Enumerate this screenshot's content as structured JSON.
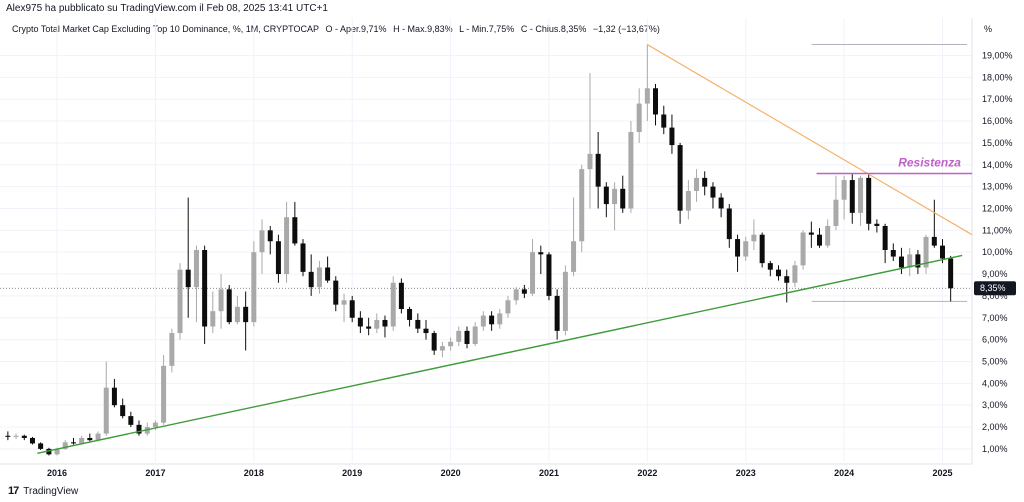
{
  "header": {
    "published_by": "Alex975 ha pubblicato su TradingView.com il Feb 08, 2025 13:41 UTC+1"
  },
  "symbol": {
    "name": "Crypto Total Market Cap Excluding Top 10 Dominance, %, 1M, CRYPTOCAP",
    "open": "O - Aper.9,71%",
    "high": "H - Max.9,83%",
    "low": "L - Min.7,75%",
    "close": "C - Chius.8,35%",
    "change": "−1,32 (−13,67%)"
  },
  "footer": {
    "brand": "TradingView"
  },
  "axis": {
    "unit": "%",
    "current_price_label": "8,35%"
  },
  "annotation": {
    "resistance_label": "Resistenza"
  },
  "colors": {
    "up": "#a9a9a9",
    "down": "#0d0d0d",
    "resistance": "#c060c8",
    "trend_orange": "#f5b26b",
    "trend_green": "#3f9b3a",
    "grid": "#f0f3fa"
  },
  "chart_data": {
    "type": "candlestick",
    "timeframe": "1M",
    "y_axis": {
      "unit": "%",
      "range": [
        0.4,
        19.8
      ],
      "tick_labels": [
        "1,00%",
        "2,00%",
        "3,00%",
        "4,00%",
        "5,00%",
        "6,00%",
        "7,00%",
        "8,00%",
        "9,00%",
        "10,00%",
        "11,00%",
        "12,00%",
        "13,00%",
        "14,00%",
        "15,00%",
        "16,00%",
        "17,00%",
        "18,00%",
        "19,00%"
      ],
      "tick_values": [
        1,
        2,
        3,
        4,
        5,
        6,
        7,
        8,
        9,
        10,
        11,
        12,
        13,
        14,
        15,
        16,
        17,
        18,
        19
      ]
    },
    "x_axis": {
      "tick_labels": [
        "2016",
        "2017",
        "2018",
        "2019",
        "2020",
        "2021",
        "2022",
        "2023",
        "2024",
        "2025"
      ],
      "tick_values": [
        2016,
        2017,
        2018,
        2019,
        2020,
        2021,
        2022,
        2023,
        2024,
        2025
      ],
      "range": [
        2015.42,
        2025.3
      ]
    },
    "grid": true,
    "last_close": 8.35,
    "candles": [
      {
        "t": 2015.5,
        "o": 1.6,
        "h": 1.8,
        "l": 1.4,
        "c": 1.55
      },
      {
        "t": 2015.583,
        "o": 1.55,
        "h": 1.7,
        "l": 1.45,
        "c": 1.6
      },
      {
        "t": 2015.667,
        "o": 1.6,
        "h": 1.65,
        "l": 1.4,
        "c": 1.5
      },
      {
        "t": 2015.75,
        "o": 1.5,
        "h": 1.55,
        "l": 1.2,
        "c": 1.25
      },
      {
        "t": 2015.833,
        "o": 1.25,
        "h": 1.3,
        "l": 0.95,
        "c": 1.0
      },
      {
        "t": 2015.917,
        "o": 1.0,
        "h": 1.05,
        "l": 0.7,
        "c": 0.75
      },
      {
        "t": 2016.0,
        "o": 0.75,
        "h": 1.05,
        "l": 0.7,
        "c": 1.0
      },
      {
        "t": 2016.083,
        "o": 1.0,
        "h": 1.4,
        "l": 0.95,
        "c": 1.3
      },
      {
        "t": 2016.167,
        "o": 1.3,
        "h": 1.5,
        "l": 1.2,
        "c": 1.25
      },
      {
        "t": 2016.25,
        "o": 1.25,
        "h": 1.6,
        "l": 1.2,
        "c": 1.5
      },
      {
        "t": 2016.333,
        "o": 1.5,
        "h": 1.7,
        "l": 1.35,
        "c": 1.4
      },
      {
        "t": 2016.417,
        "o": 1.4,
        "h": 1.8,
        "l": 1.35,
        "c": 1.7
      },
      {
        "t": 2016.5,
        "o": 1.7,
        "h": 5.0,
        "l": 1.6,
        "c": 3.8
      },
      {
        "t": 2016.583,
        "o": 3.8,
        "h": 4.2,
        "l": 2.9,
        "c": 3.0
      },
      {
        "t": 2016.667,
        "o": 3.0,
        "h": 3.3,
        "l": 2.4,
        "c": 2.5
      },
      {
        "t": 2016.75,
        "o": 2.5,
        "h": 2.7,
        "l": 2.0,
        "c": 2.1
      },
      {
        "t": 2016.833,
        "o": 2.1,
        "h": 2.3,
        "l": 1.6,
        "c": 1.7
      },
      {
        "t": 2016.917,
        "o": 1.7,
        "h": 2.2,
        "l": 1.6,
        "c": 2.0
      },
      {
        "t": 2017.0,
        "o": 2.0,
        "h": 2.3,
        "l": 1.85,
        "c": 2.2
      },
      {
        "t": 2017.083,
        "o": 2.2,
        "h": 5.3,
        "l": 2.1,
        "c": 4.8
      },
      {
        "t": 2017.167,
        "o": 4.8,
        "h": 6.5,
        "l": 4.5,
        "c": 6.3
      },
      {
        "t": 2017.25,
        "o": 6.3,
        "h": 9.5,
        "l": 6.0,
        "c": 9.2
      },
      {
        "t": 2017.333,
        "o": 9.2,
        "h": 12.5,
        "l": 7.0,
        "c": 8.4
      },
      {
        "t": 2017.417,
        "o": 8.4,
        "h": 10.3,
        "l": 6.8,
        "c": 10.1
      },
      {
        "t": 2017.5,
        "o": 10.1,
        "h": 10.3,
        "l": 5.8,
        "c": 6.6
      },
      {
        "t": 2017.583,
        "o": 6.6,
        "h": 8.2,
        "l": 6.3,
        "c": 7.3
      },
      {
        "t": 2017.667,
        "o": 7.3,
        "h": 9.0,
        "l": 6.5,
        "c": 8.3
      },
      {
        "t": 2017.75,
        "o": 8.3,
        "h": 8.5,
        "l": 6.7,
        "c": 6.8
      },
      {
        "t": 2017.833,
        "o": 6.8,
        "h": 8.0,
        "l": 6.7,
        "c": 7.5
      },
      {
        "t": 2017.917,
        "o": 7.5,
        "h": 8.2,
        "l": 5.5,
        "c": 6.8
      },
      {
        "t": 2018.0,
        "o": 6.8,
        "h": 10.5,
        "l": 6.6,
        "c": 10.0
      },
      {
        "t": 2018.083,
        "o": 10.0,
        "h": 11.5,
        "l": 9.0,
        "c": 11.0
      },
      {
        "t": 2018.167,
        "o": 11.0,
        "h": 11.2,
        "l": 9.9,
        "c": 10.5
      },
      {
        "t": 2018.25,
        "o": 10.5,
        "h": 10.8,
        "l": 8.6,
        "c": 9.0
      },
      {
        "t": 2018.333,
        "o": 9.0,
        "h": 12.3,
        "l": 8.6,
        "c": 11.6
      },
      {
        "t": 2018.417,
        "o": 11.6,
        "h": 12.3,
        "l": 10.3,
        "c": 10.4
      },
      {
        "t": 2018.5,
        "o": 10.4,
        "h": 10.6,
        "l": 8.9,
        "c": 9.1
      },
      {
        "t": 2018.583,
        "o": 9.1,
        "h": 9.9,
        "l": 8.0,
        "c": 8.4
      },
      {
        "t": 2018.667,
        "o": 8.4,
        "h": 9.6,
        "l": 8.1,
        "c": 9.3
      },
      {
        "t": 2018.75,
        "o": 9.3,
        "h": 9.8,
        "l": 8.6,
        "c": 8.7
      },
      {
        "t": 2018.833,
        "o": 8.7,
        "h": 8.9,
        "l": 7.3,
        "c": 7.6
      },
      {
        "t": 2018.917,
        "o": 7.6,
        "h": 8.1,
        "l": 6.8,
        "c": 7.8
      },
      {
        "t": 2019.0,
        "o": 7.8,
        "h": 8.0,
        "l": 6.8,
        "c": 7.0
      },
      {
        "t": 2019.083,
        "o": 7.0,
        "h": 7.3,
        "l": 6.3,
        "c": 6.6
      },
      {
        "t": 2019.167,
        "o": 6.6,
        "h": 7.0,
        "l": 6.2,
        "c": 6.5
      },
      {
        "t": 2019.25,
        "o": 6.5,
        "h": 7.2,
        "l": 6.3,
        "c": 6.9
      },
      {
        "t": 2019.333,
        "o": 6.9,
        "h": 7.1,
        "l": 6.1,
        "c": 6.6
      },
      {
        "t": 2019.417,
        "o": 6.6,
        "h": 8.9,
        "l": 6.4,
        "c": 8.6
      },
      {
        "t": 2019.5,
        "o": 8.6,
        "h": 8.8,
        "l": 7.2,
        "c": 7.4
      },
      {
        "t": 2019.583,
        "o": 7.4,
        "h": 7.5,
        "l": 6.6,
        "c": 6.9
      },
      {
        "t": 2019.667,
        "o": 6.9,
        "h": 7.2,
        "l": 6.3,
        "c": 6.5
      },
      {
        "t": 2019.75,
        "o": 6.5,
        "h": 6.9,
        "l": 6.0,
        "c": 6.3
      },
      {
        "t": 2019.833,
        "o": 6.3,
        "h": 6.4,
        "l": 5.3,
        "c": 5.5
      },
      {
        "t": 2019.917,
        "o": 5.5,
        "h": 5.9,
        "l": 5.2,
        "c": 5.7
      },
      {
        "t": 2020.0,
        "o": 5.7,
        "h": 6.1,
        "l": 5.5,
        "c": 5.9
      },
      {
        "t": 2020.083,
        "o": 5.9,
        "h": 6.6,
        "l": 5.7,
        "c": 6.4
      },
      {
        "t": 2020.167,
        "o": 6.4,
        "h": 6.6,
        "l": 5.6,
        "c": 5.8
      },
      {
        "t": 2020.25,
        "o": 5.8,
        "h": 6.8,
        "l": 5.7,
        "c": 6.6
      },
      {
        "t": 2020.333,
        "o": 6.6,
        "h": 7.3,
        "l": 6.4,
        "c": 7.1
      },
      {
        "t": 2020.417,
        "o": 7.1,
        "h": 7.3,
        "l": 6.4,
        "c": 6.7
      },
      {
        "t": 2020.5,
        "o": 6.7,
        "h": 7.4,
        "l": 6.5,
        "c": 7.2
      },
      {
        "t": 2020.583,
        "o": 7.2,
        "h": 8.0,
        "l": 7.0,
        "c": 7.8
      },
      {
        "t": 2020.667,
        "o": 7.8,
        "h": 8.4,
        "l": 7.6,
        "c": 8.3
      },
      {
        "t": 2020.75,
        "o": 8.3,
        "h": 8.5,
        "l": 7.9,
        "c": 8.1
      },
      {
        "t": 2020.833,
        "o": 8.1,
        "h": 10.6,
        "l": 8.0,
        "c": 10.0
      },
      {
        "t": 2020.917,
        "o": 10.0,
        "h": 10.3,
        "l": 9.0,
        "c": 9.9
      },
      {
        "t": 2021.0,
        "o": 9.9,
        "h": 10.0,
        "l": 7.8,
        "c": 8.0
      },
      {
        "t": 2021.083,
        "o": 8.0,
        "h": 8.3,
        "l": 6.0,
        "c": 6.4
      },
      {
        "t": 2021.167,
        "o": 6.4,
        "h": 9.4,
        "l": 6.2,
        "c": 9.1
      },
      {
        "t": 2021.25,
        "o": 9.1,
        "h": 12.5,
        "l": 8.9,
        "c": 10.5
      },
      {
        "t": 2021.333,
        "o": 10.5,
        "h": 14.0,
        "l": 10.0,
        "c": 13.8
      },
      {
        "t": 2021.417,
        "o": 13.8,
        "h": 18.2,
        "l": 12.0,
        "c": 14.5
      },
      {
        "t": 2021.5,
        "o": 14.5,
        "h": 15.5,
        "l": 12.0,
        "c": 13.0
      },
      {
        "t": 2021.583,
        "o": 13.0,
        "h": 13.2,
        "l": 11.6,
        "c": 12.2
      },
      {
        "t": 2021.667,
        "o": 12.2,
        "h": 13.2,
        "l": 11.0,
        "c": 12.9
      },
      {
        "t": 2021.75,
        "o": 12.9,
        "h": 13.5,
        "l": 11.8,
        "c": 12.0
      },
      {
        "t": 2021.833,
        "o": 12.0,
        "h": 16.0,
        "l": 11.8,
        "c": 15.5
      },
      {
        "t": 2021.917,
        "o": 15.5,
        "h": 17.5,
        "l": 15.0,
        "c": 16.8
      },
      {
        "t": 2022.0,
        "o": 16.8,
        "h": 19.5,
        "l": 16.0,
        "c": 17.5
      },
      {
        "t": 2022.083,
        "o": 17.5,
        "h": 17.7,
        "l": 15.8,
        "c": 16.3
      },
      {
        "t": 2022.167,
        "o": 16.3,
        "h": 16.7,
        "l": 15.4,
        "c": 15.7
      },
      {
        "t": 2022.25,
        "o": 15.7,
        "h": 16.3,
        "l": 14.5,
        "c": 14.9
      },
      {
        "t": 2022.333,
        "o": 14.9,
        "h": 15.0,
        "l": 11.3,
        "c": 11.9
      },
      {
        "t": 2022.417,
        "o": 11.9,
        "h": 13.3,
        "l": 11.5,
        "c": 12.8
      },
      {
        "t": 2022.5,
        "o": 12.8,
        "h": 13.8,
        "l": 12.3,
        "c": 13.4
      },
      {
        "t": 2022.583,
        "o": 13.4,
        "h": 13.7,
        "l": 12.6,
        "c": 13.0
      },
      {
        "t": 2022.667,
        "o": 13.0,
        "h": 13.2,
        "l": 12.0,
        "c": 12.5
      },
      {
        "t": 2022.75,
        "o": 12.5,
        "h": 12.7,
        "l": 11.6,
        "c": 12.0
      },
      {
        "t": 2022.833,
        "o": 12.0,
        "h": 12.2,
        "l": 10.2,
        "c": 10.6
      },
      {
        "t": 2022.917,
        "o": 10.6,
        "h": 10.8,
        "l": 9.1,
        "c": 9.8
      },
      {
        "t": 2023.0,
        "o": 9.8,
        "h": 10.7,
        "l": 9.6,
        "c": 10.5
      },
      {
        "t": 2023.083,
        "o": 10.5,
        "h": 11.5,
        "l": 10.1,
        "c": 10.8
      },
      {
        "t": 2023.167,
        "o": 10.8,
        "h": 10.9,
        "l": 9.3,
        "c": 9.5
      },
      {
        "t": 2023.25,
        "o": 9.5,
        "h": 9.6,
        "l": 8.9,
        "c": 9.2
      },
      {
        "t": 2023.333,
        "o": 9.2,
        "h": 9.4,
        "l": 8.7,
        "c": 8.9
      },
      {
        "t": 2023.417,
        "o": 8.9,
        "h": 9.2,
        "l": 7.7,
        "c": 8.6
      },
      {
        "t": 2023.5,
        "o": 8.6,
        "h": 9.6,
        "l": 8.4,
        "c": 9.4
      },
      {
        "t": 2023.583,
        "o": 9.4,
        "h": 11.0,
        "l": 9.2,
        "c": 10.9
      },
      {
        "t": 2023.667,
        "o": 10.9,
        "h": 11.4,
        "l": 10.2,
        "c": 10.8
      },
      {
        "t": 2023.75,
        "o": 10.8,
        "h": 11.1,
        "l": 10.2,
        "c": 10.3
      },
      {
        "t": 2023.833,
        "o": 10.3,
        "h": 11.5,
        "l": 10.2,
        "c": 11.2
      },
      {
        "t": 2023.917,
        "o": 11.2,
        "h": 13.5,
        "l": 11.0,
        "c": 12.4
      },
      {
        "t": 2024.0,
        "o": 12.4,
        "h": 13.5,
        "l": 11.5,
        "c": 13.3
      },
      {
        "t": 2024.083,
        "o": 13.3,
        "h": 13.6,
        "l": 11.3,
        "c": 11.8
      },
      {
        "t": 2024.167,
        "o": 11.8,
        "h": 13.5,
        "l": 11.2,
        "c": 13.4
      },
      {
        "t": 2024.25,
        "o": 13.4,
        "h": 13.6,
        "l": 11.0,
        "c": 11.3
      },
      {
        "t": 2024.333,
        "o": 11.3,
        "h": 11.5,
        "l": 10.9,
        "c": 11.2
      },
      {
        "t": 2024.417,
        "o": 11.2,
        "h": 11.3,
        "l": 9.5,
        "c": 10.1
      },
      {
        "t": 2024.5,
        "o": 10.1,
        "h": 10.4,
        "l": 9.6,
        "c": 9.8
      },
      {
        "t": 2024.583,
        "o": 9.8,
        "h": 10.2,
        "l": 9.0,
        "c": 9.3
      },
      {
        "t": 2024.667,
        "o": 9.3,
        "h": 10.2,
        "l": 8.9,
        "c": 9.9
      },
      {
        "t": 2024.75,
        "o": 9.9,
        "h": 10.1,
        "l": 9.0,
        "c": 9.3
      },
      {
        "t": 2024.833,
        "o": 9.3,
        "h": 10.8,
        "l": 9.0,
        "c": 10.7
      },
      {
        "t": 2024.917,
        "o": 10.7,
        "h": 12.4,
        "l": 10.2,
        "c": 10.3
      },
      {
        "t": 2025.0,
        "o": 10.3,
        "h": 10.6,
        "l": 9.5,
        "c": 9.71
      },
      {
        "t": 2025.083,
        "o": 9.71,
        "h": 9.83,
        "l": 7.75,
        "c": 8.35
      }
    ],
    "annotations": {
      "orange_trendline": {
        "from": {
          "t": 2022.0,
          "v": 19.5
        },
        "to": {
          "t": 2025.3,
          "v": 10.8
        }
      },
      "green_trendline": {
        "from": {
          "t": 2015.8,
          "v": 0.8
        },
        "to": {
          "t": 2025.2,
          "v": 9.85
        }
      },
      "resistance_level": 13.6,
      "range_top": 19.5,
      "range_bottom": 7.75,
      "resistance_label": "Resistenza"
    }
  }
}
